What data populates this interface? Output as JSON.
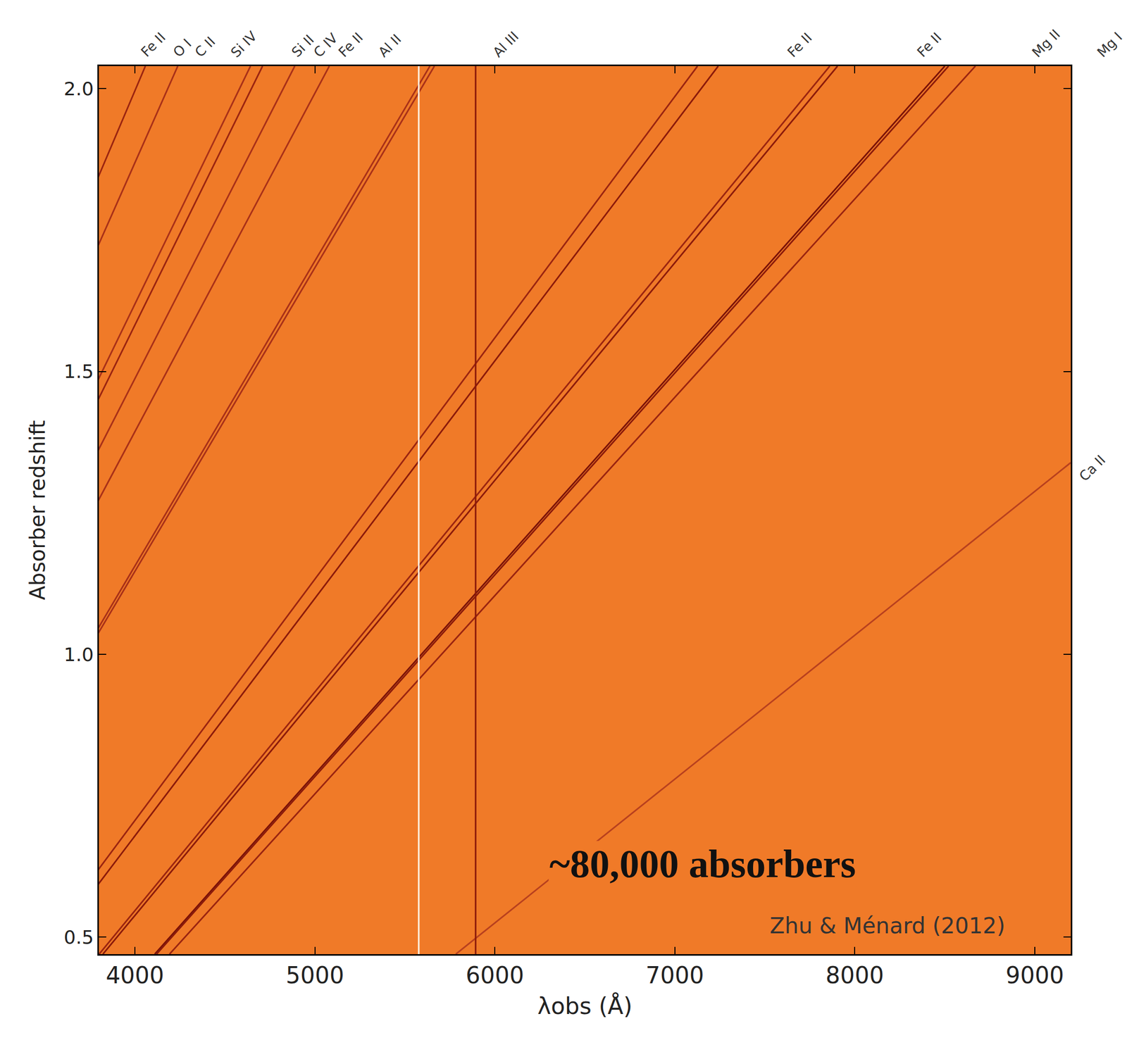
{
  "chart_data": {
    "type": "line",
    "x_label": "λobs (Å)",
    "y_label": "Absorber redshift",
    "xlim": [
      3800,
      9200
    ],
    "xticks": [
      4000,
      5000,
      6000,
      7000,
      8000,
      9000
    ],
    "ylim": [
      0.47,
      2.04
    ],
    "yticks": [
      0.5,
      {
        "value": 1,
        "label": "1.0"
      },
      1.5,
      {
        "value": 2,
        "label": "2.0"
      }
    ],
    "grid": false,
    "series": [
      {
        "color": "#7a1208",
        "x": [
          4110,
          8500
        ],
        "values": [
          0.47,
          2.04
        ]
      },
      {
        "color": "#8b1a0a",
        "x": [
          4120,
          8521
        ],
        "values": [
          0.47,
          2.04
        ]
      },
      {
        "color": "#9a2410",
        "x": [
          4192,
          8670
        ],
        "values": [
          0.47,
          2.04
        ]
      },
      {
        "color": "#8b1a0a",
        "x": [
          3822,
          7904
        ],
        "values": [
          0.47,
          2.04
        ]
      },
      {
        "color": "#9a2410",
        "x": [
          3801,
          7861
        ],
        "values": [
          0.47,
          2.04
        ]
      },
      {
        "color": "#8b1a0a",
        "x": [
          3502,
          7241
        ],
        "values": [
          0.47,
          2.04
        ]
      },
      {
        "color": "#9a2410",
        "x": [
          3446,
          7126
        ],
        "values": [
          0.47,
          2.04
        ]
      },
      {
        "color": "#a83018",
        "x": [
          2739,
          5664
        ],
        "values": [
          0.47,
          2.04
        ]
      },
      {
        "color": "#a83018",
        "x": [
          2727,
          5639
        ],
        "values": [
          0.47,
          2.04
        ]
      },
      {
        "color": "#a83018",
        "x": [
          2456,
          5080
        ],
        "values": [
          0.47,
          2.04
        ]
      },
      {
        "color": "#a83018",
        "x": [
          2364,
          4888
        ],
        "values": [
          0.47,
          2.04
        ]
      },
      {
        "color": "#9a2410",
        "x": [
          2277,
          4709
        ],
        "values": [
          0.47,
          2.04
        ]
      },
      {
        "color": "#a83018",
        "x": [
          2245,
          4642
        ],
        "values": [
          0.47,
          2.04
        ]
      },
      {
        "color": "#a83018",
        "x": [
          2049,
          4238
        ],
        "values": [
          0.47,
          2.04
        ]
      },
      {
        "color": "#9a2410",
        "x": [
          1962,
          4058
        ],
        "values": [
          0.47,
          2.04
        ]
      },
      {
        "color": "#b8401e",
        "x": [
          5783,
          9200
        ],
        "values": [
          0.47,
          1.339
        ]
      },
      {
        "color": "#fff4e6",
        "x": [
          5577,
          5577
        ],
        "values": [
          0.47,
          2.04
        ]
      },
      {
        "color": "#8b1a0a",
        "x": [
          5893,
          5893
        ],
        "values": [
          0.47,
          2.04
        ]
      }
    ],
    "top_labels": [
      {
        "text": "Fe II",
        "x": 4008
      },
      {
        "text": "O I",
        "x": 4188
      },
      {
        "text": "C II",
        "x": 4308
      },
      {
        "text": "Si IV",
        "x": 4507
      },
      {
        "text": "Si II",
        "x": 4847
      },
      {
        "text": "C IV",
        "x": 4967
      },
      {
        "text": "Fe II",
        "x": 5106
      },
      {
        "text": "Al II",
        "x": 5326
      },
      {
        "text": "Al III",
        "x": 5965
      },
      {
        "text": "Fe II",
        "x": 7602
      },
      {
        "text": "Fe II",
        "x": 8321
      },
      {
        "text": "Mg II",
        "x": 8960
      },
      {
        "text": "Mg I",
        "x": 9320
      }
    ],
    "side_labels": [
      {
        "text": "Ca II",
        "x": 9320,
        "y": 1.33
      }
    ],
    "annotations": [
      {
        "text": "~80,000 absorbers",
        "x": 8010,
        "y": 0.63
      },
      {
        "text": "Zhu & Ménard (2012)",
        "x": 8840,
        "y": 0.52
      }
    ]
  }
}
